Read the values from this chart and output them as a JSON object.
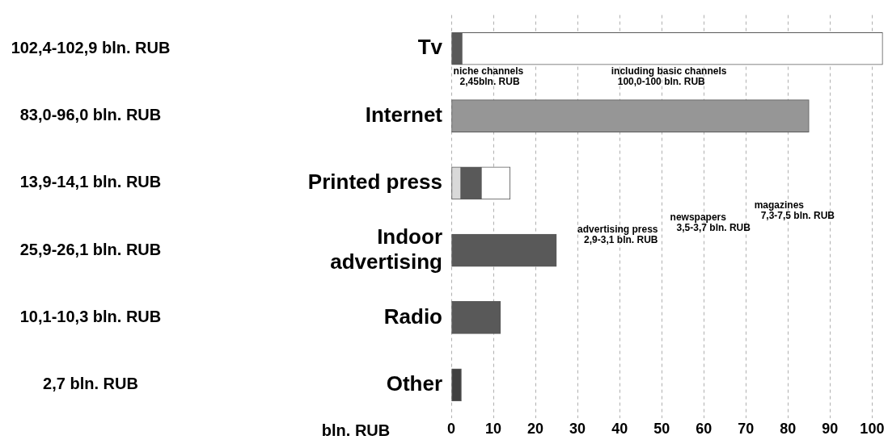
{
  "chart_data": {
    "type": "bar",
    "orientation": "horizontal",
    "stacked": true,
    "categories": [
      "Tv",
      "Internet",
      "Printed press",
      "Indoor advertising",
      "Radio",
      "Other"
    ],
    "series": [
      {
        "colors": [
          "#595959",
          "#969696",
          "#d9d9d9",
          "#595959",
          "#595959",
          "#404040"
        ],
        "values": [
          2.5,
          85,
          2.3,
          25,
          11.7,
          2.4
        ]
      },
      {
        "colors": [
          "#ffffff",
          "#ffffff",
          "#595959",
          "#ffffff",
          "#ffffff",
          "#ffffff"
        ],
        "values": [
          100,
          null,
          4.8,
          null,
          null,
          null
        ]
      },
      {
        "colors": [
          "#ffffff",
          "#ffffff",
          "#ffffff",
          "#ffffff",
          "#ffffff",
          "#ffffff"
        ],
        "values": [
          null,
          null,
          6.9,
          null,
          null,
          null
        ]
      }
    ],
    "xlim": [
      0,
      103
    ],
    "xticks": [
      0,
      10,
      20,
      30,
      40,
      50,
      60,
      70,
      80,
      90,
      100
    ],
    "xlabel": "bln. RUB",
    "grid": "x",
    "annotations": [
      "102,4-102,9 bln. RUB",
      "83,0-96,0 bln. RUB",
      "13,9-14,1 bln. RUB",
      "25,9-26,1 bln. RUB",
      "10,1-10,3 bln. RUB",
      "2,7 bln. RUB",
      "niche channels\n2,45bln. RUB",
      "including basic channels\n100,0-100 bln. RUB",
      "magazines\n7,3-7,5 bln. RUB",
      "newspapers\n3,5-3,7 bln. RUB",
      "advertising press\n2,9-3,1 bln. RUB"
    ]
  }
}
